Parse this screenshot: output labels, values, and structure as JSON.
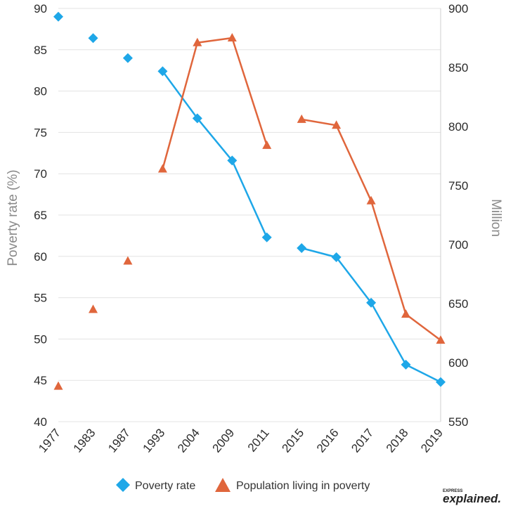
{
  "chart_data": {
    "type": "line",
    "categories": [
      "1977",
      "1983",
      "1987",
      "1993",
      "2004",
      "2009",
      "2011",
      "2015",
      "2016",
      "2017",
      "2018",
      "2019"
    ],
    "series": [
      {
        "name": "Poverty rate",
        "axis": "left",
        "marker": "diamond",
        "color": "#1ea7e8",
        "values": [
          89.0,
          86.4,
          84.0,
          82.4,
          76.7,
          71.6,
          62.3,
          61.0,
          59.9,
          54.4,
          46.9,
          44.8
        ],
        "connected_from_index": 3,
        "gap_after_index": 6
      },
      {
        "name": "Population living in poverty",
        "axis": "right",
        "marker": "triangle",
        "color": "#e0663c",
        "values": [
          580,
          645,
          686,
          764,
          871,
          875,
          784,
          806,
          801,
          737,
          641,
          619
        ],
        "connected_from_index": 3,
        "gap_after_index": 6
      }
    ],
    "ylabel": "Poverty rate (%)",
    "ylim": [
      40,
      90
    ],
    "yticks": [
      40,
      45,
      50,
      55,
      60,
      65,
      70,
      75,
      80,
      85,
      90
    ],
    "y2label": "Million",
    "y2lim": [
      550,
      900
    ],
    "y2ticks": [
      550,
      600,
      650,
      700,
      750,
      800,
      850,
      900
    ],
    "grid": true,
    "legend_position": "bottom"
  },
  "brand": {
    "small": "EXPRESS",
    "big": "explained."
  }
}
